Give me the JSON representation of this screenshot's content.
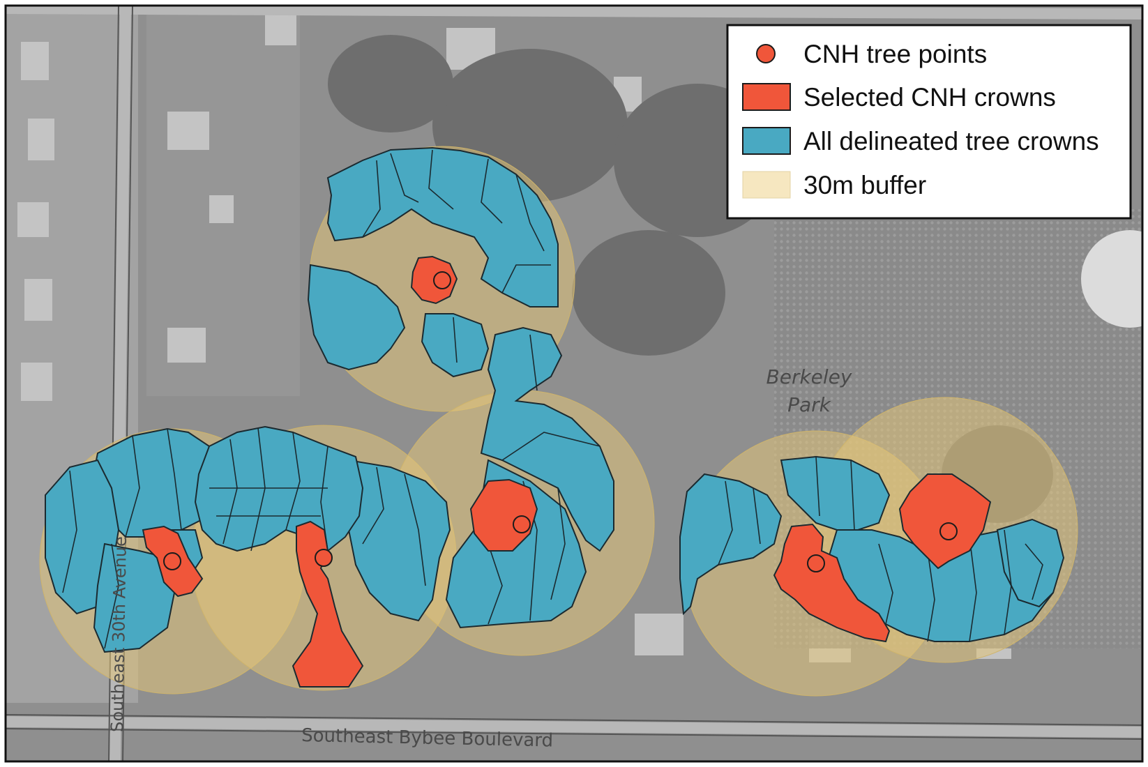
{
  "legend": {
    "items": [
      {
        "label": "CNH tree points",
        "symbol": "circle",
        "color": "#f0563a"
      },
      {
        "label": "Selected CNH crowns",
        "symbol": "square",
        "color": "#f0563a"
      },
      {
        "label": "All delineated tree crowns",
        "symbol": "square",
        "color": "#49a9c2"
      },
      {
        "label": "30m buffer",
        "symbol": "square",
        "color": "#f6e7c0"
      }
    ]
  },
  "map_labels": {
    "park": [
      "Berkeley",
      "Park"
    ],
    "boulevard": "Southeast Bybee Boulevard",
    "avenue": "Southeast 30th Avenue"
  },
  "colors": {
    "tree_point": "#f0563a",
    "selected_crown": "#f0563a",
    "delineated_crown": "#49a9c2",
    "buffer": "#e2c47a",
    "basemap": "#8c8c8c"
  }
}
